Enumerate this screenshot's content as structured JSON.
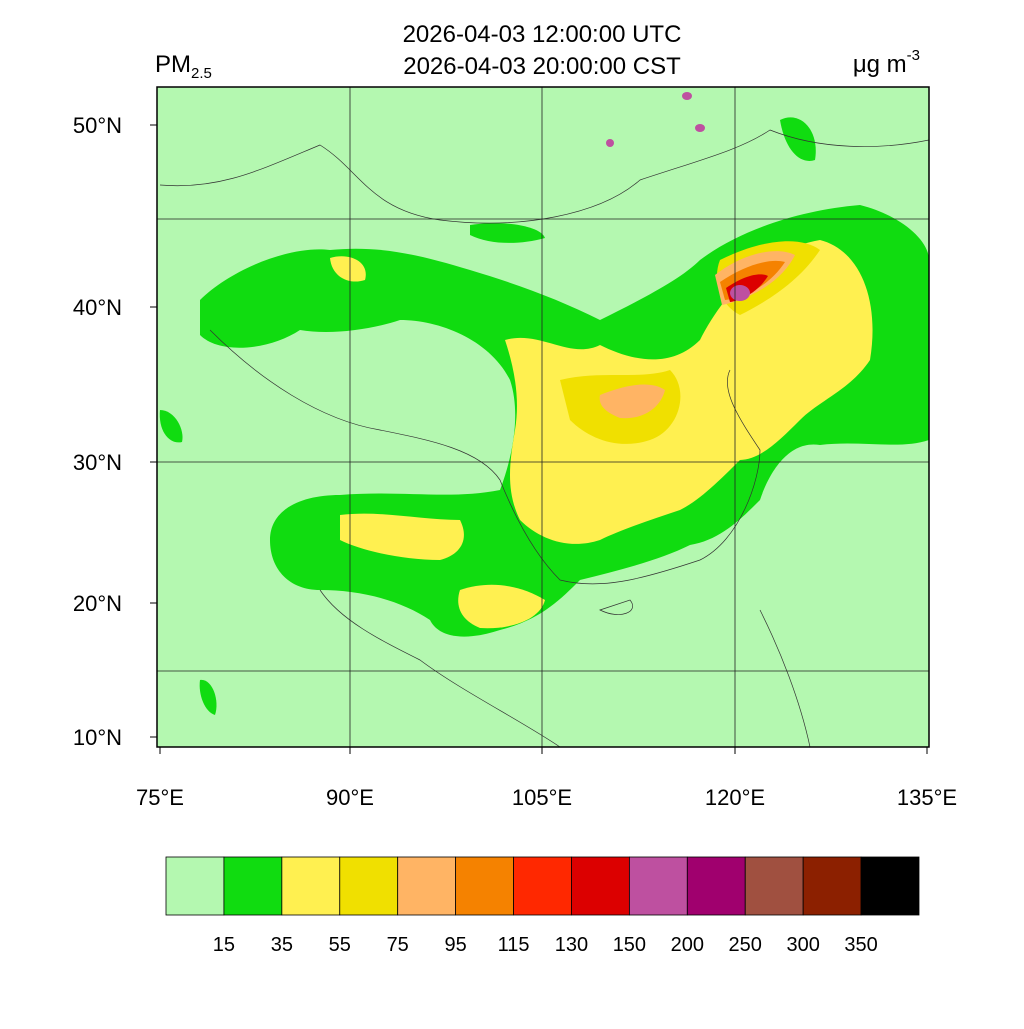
{
  "header": {
    "variable": "PM",
    "variable_subscript": "2.5",
    "title_lines": [
      "2026-04-03 12:00:00 UTC",
      "2026-04-03 20:00:00 CST"
    ],
    "units": "μg m",
    "units_superscript": "-3"
  },
  "map": {
    "lat_labels": [
      "50°N",
      "40°N",
      "30°N",
      "20°N",
      "10°N"
    ],
    "lon_labels": [
      "75°E",
      "90°E",
      "105°E",
      "120°E",
      "135°E"
    ]
  },
  "colorbar": {
    "colors": [
      "#b4f8b0",
      "#10dc10",
      "#fff050",
      "#f0e000",
      "#ffb464",
      "#f58200",
      "#ff2800",
      "#dc0000",
      "#be50a0",
      "#a0006e",
      "#a05040",
      "#8c2000",
      "#000000"
    ],
    "labels": [
      15,
      35,
      55,
      75,
      95,
      115,
      130,
      150,
      200,
      250,
      300,
      350
    ]
  }
}
